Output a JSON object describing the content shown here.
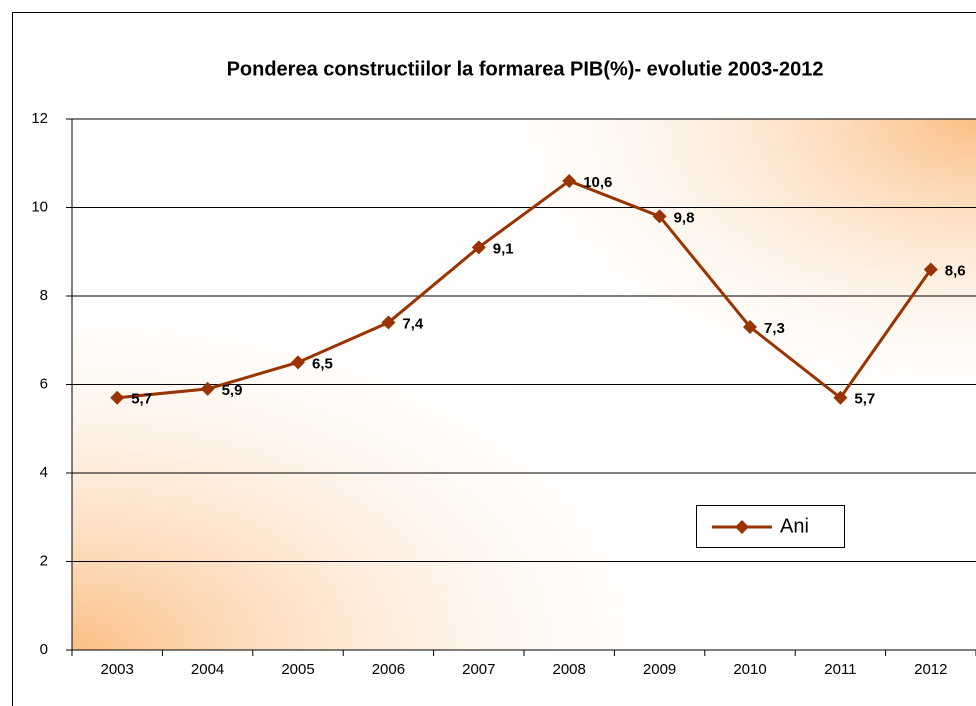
{
  "chart_data": {
    "type": "line",
    "title": "Ponderea constructiilor la formarea PIB(%)- evolutie 2003-2012",
    "categories": [
      "2003",
      "2004",
      "2005",
      "2006",
      "2007",
      "2008",
      "2009",
      "2010",
      "2011",
      "2012"
    ],
    "series": [
      {
        "name": "Ani",
        "color": "#993300",
        "values": [
          5.7,
          5.9,
          6.5,
          7.4,
          9.1,
          10.6,
          9.8,
          7.3,
          5.7,
          8.6
        ],
        "value_labels": [
          "5,7",
          "5,9",
          "6,5",
          "7,4",
          "9,1",
          "10,6",
          "9,8",
          "7,3",
          "5,7",
          "8,6"
        ]
      }
    ],
    "ylim": [
      0,
      12
    ],
    "yticks": [
      0,
      2,
      4,
      6,
      8,
      10,
      12
    ],
    "grid": true
  }
}
